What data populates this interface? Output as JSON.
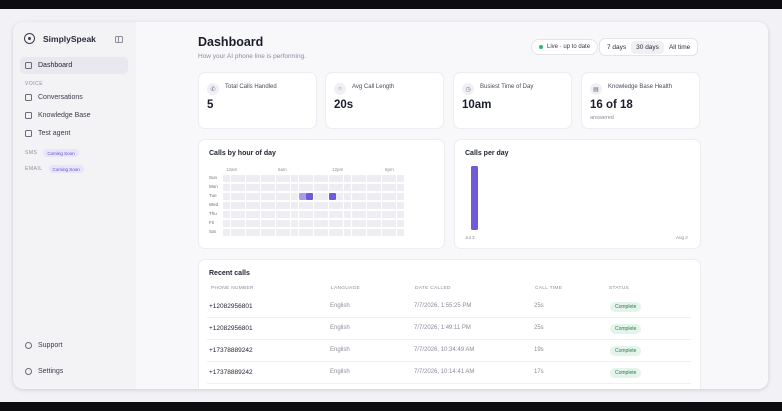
{
  "brand": {
    "name": "SimplySpeak"
  },
  "sidebar": {
    "dashboard": "Dashboard",
    "voice_label": "VOICE",
    "items": [
      "Conversations",
      "Knowledge Base",
      "Test agent"
    ],
    "sms_label": "SMS",
    "email_label": "EMAIL",
    "coming_soon": "Coming Soon",
    "support": "Support",
    "settings": "Settings"
  },
  "header": {
    "title": "Dashboard",
    "subtitle": "How your AI phone line is performing.",
    "live_status": "Live · up to date",
    "ranges": [
      "7 days",
      "30 days",
      "All time"
    ],
    "active_range": "30 days"
  },
  "stats": [
    {
      "label": "Total Calls Handled",
      "value": "5",
      "sub": "",
      "icon": "phone-icon"
    },
    {
      "label": "Avg Call Length",
      "value": "20s",
      "sub": "",
      "icon": "drop-icon"
    },
    {
      "label": "Busiest Time of Day",
      "value": "10am",
      "sub": "",
      "icon": "clock-icon"
    },
    {
      "label": "Knowledge Base Health",
      "value": "16 of 18",
      "sub": "answered",
      "icon": "book-icon"
    }
  ],
  "heatmap": {
    "title": "Calls by hour of day",
    "hour_labels": [
      "12am",
      "6am",
      "12pm",
      "6pm"
    ],
    "days": [
      "Sun",
      "Mon",
      "Tue",
      "Wed",
      "Thu",
      "Fri",
      "Sat"
    ],
    "highlights": [
      {
        "day": "Tue",
        "hour": 10,
        "level": "light"
      },
      {
        "day": "Tue",
        "hour": 11,
        "level": "dark"
      },
      {
        "day": "Tue",
        "hour": 14,
        "level": "dark"
      }
    ]
  },
  "chart_data": {
    "type": "bar",
    "title": "Calls per day",
    "x_labels": [
      "Jul 3",
      "Aug 2"
    ],
    "categories": [
      "Jul 7"
    ],
    "values": [
      5
    ],
    "ylim": [
      0,
      5
    ],
    "color": "#6f5ad8"
  },
  "recent_calls": {
    "title": "Recent calls",
    "columns": [
      "PHONE NUMBER",
      "LANGUAGE",
      "DATE CALLED",
      "CALL TIME",
      "STATUS"
    ],
    "rows": [
      {
        "phone": "+12082956801",
        "language": "English",
        "date": "7/7/2026, 1:55:25 PM",
        "time": "25s",
        "status": "Complete"
      },
      {
        "phone": "+12082956801",
        "language": "English",
        "date": "7/7/2026, 1:49:11 PM",
        "time": "25s",
        "status": "Complete"
      },
      {
        "phone": "+17378889242",
        "language": "English",
        "date": "7/7/2026, 10:34:49 AM",
        "time": "19s",
        "status": "Complete"
      },
      {
        "phone": "+17378889242",
        "language": "English",
        "date": "7/7/2026, 10:14:41 AM",
        "time": "17s",
        "status": "Complete"
      }
    ]
  },
  "colors": {
    "accent": "#6f5ad8",
    "accent_light": "#a99cf0",
    "success": "#2eb872"
  }
}
